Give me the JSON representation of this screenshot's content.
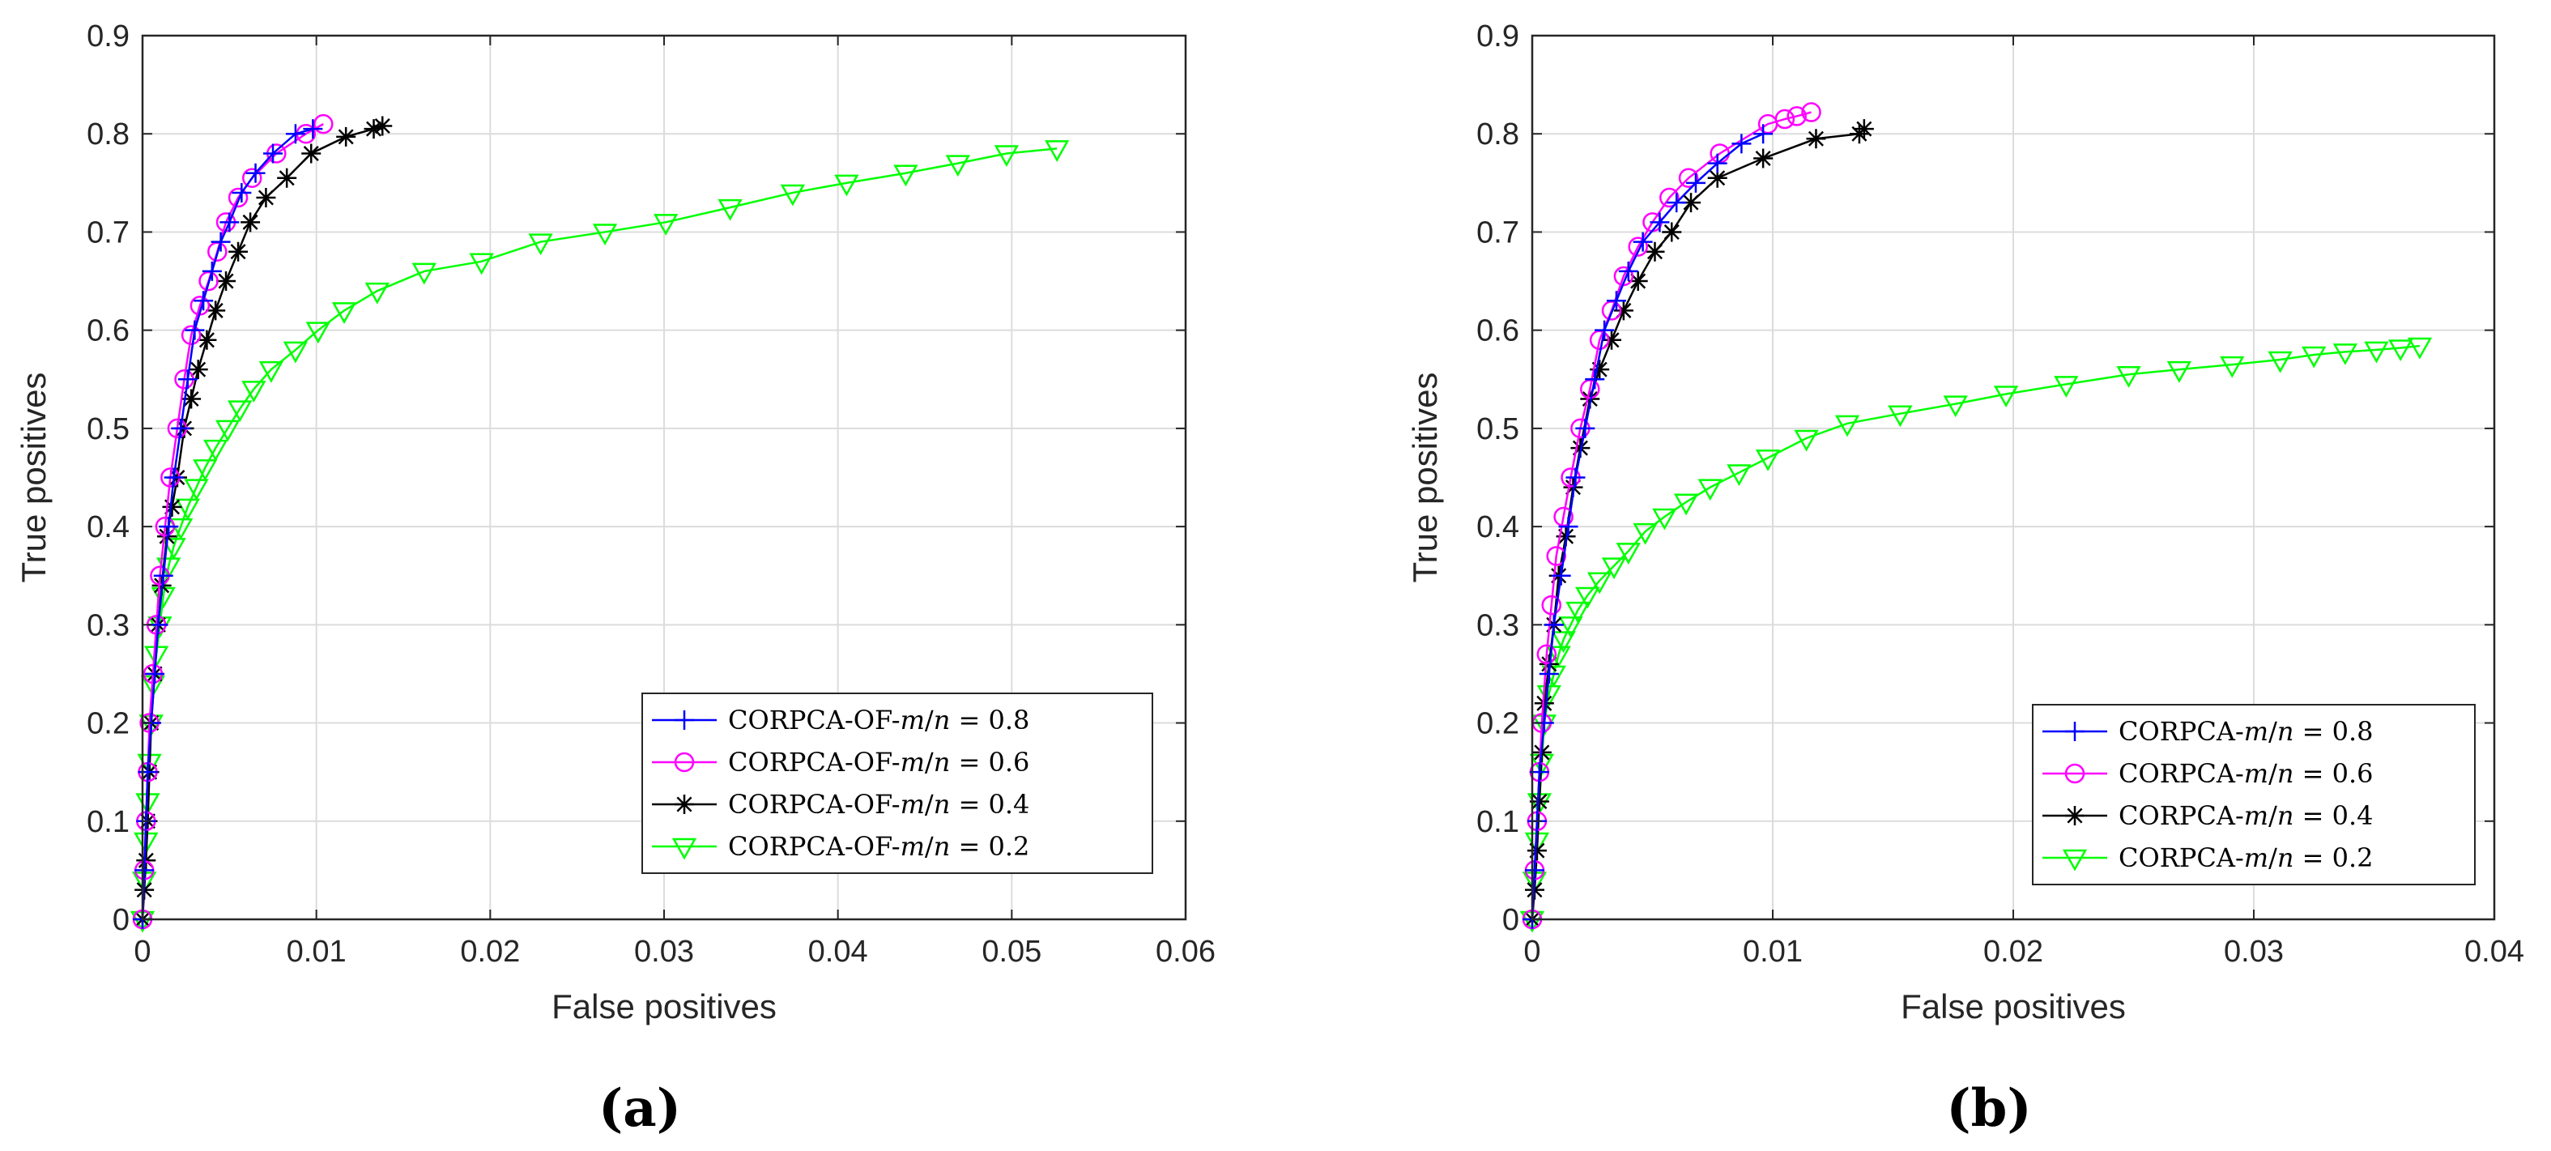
{
  "chart_data": [
    {
      "type": "line",
      "panel_label": "(a)",
      "xlabel": "False positives",
      "ylabel": "True positives",
      "xlim": [
        0,
        0.06
      ],
      "ylim": [
        0,
        0.9
      ],
      "xticks": [
        0,
        0.01,
        0.02,
        0.03,
        0.04,
        0.05,
        0.06
      ],
      "xtick_labels": [
        "0",
        "0.01",
        "0.02",
        "0.03",
        "0.04",
        "0.05",
        "0.06"
      ],
      "yticks": [
        0,
        0.1,
        0.2,
        0.3,
        0.4,
        0.5,
        0.6,
        0.7,
        0.8,
        0.9
      ],
      "ytick_labels": [
        "0",
        "0.1",
        "0.2",
        "0.3",
        "0.4",
        "0.5",
        "0.6",
        "0.7",
        "0.8",
        "0.9"
      ],
      "grid": true,
      "legend_position": "bottom-right",
      "series": [
        {
          "name": "CORPCA-OF-m/n = 0.8",
          "color": "#0000ff",
          "marker": "plus",
          "x": [
            0,
            0.0001,
            0.0002,
            0.0003,
            0.0005,
            0.0007,
            0.0009,
            0.0012,
            0.0015,
            0.0018,
            0.0022,
            0.0026,
            0.003,
            0.0035,
            0.004,
            0.0045,
            0.005,
            0.0057,
            0.0065,
            0.0075,
            0.0088,
            0.0098
          ],
          "y": [
            0,
            0.05,
            0.1,
            0.15,
            0.2,
            0.25,
            0.3,
            0.35,
            0.4,
            0.45,
            0.5,
            0.55,
            0.6,
            0.63,
            0.66,
            0.69,
            0.71,
            0.74,
            0.76,
            0.78,
            0.8,
            0.805
          ]
        },
        {
          "name": "CORPCA-OF-m/n = 0.6",
          "color": "#ff00ff",
          "marker": "circle",
          "x": [
            0,
            0.0001,
            0.0002,
            0.0003,
            0.0004,
            0.0006,
            0.0008,
            0.001,
            0.0013,
            0.0016,
            0.002,
            0.0024,
            0.0028,
            0.0033,
            0.0038,
            0.0043,
            0.0048,
            0.0055,
            0.0063,
            0.0077,
            0.0094,
            0.0104
          ],
          "y": [
            0,
            0.05,
            0.1,
            0.15,
            0.2,
            0.25,
            0.3,
            0.35,
            0.4,
            0.45,
            0.5,
            0.55,
            0.595,
            0.625,
            0.65,
            0.68,
            0.71,
            0.735,
            0.755,
            0.78,
            0.8,
            0.81
          ]
        },
        {
          "name": "CORPCA-OF-m/n = 0.4",
          "color": "#000000",
          "marker": "asterisk",
          "x": [
            0,
            0.0001,
            0.0002,
            0.0003,
            0.0004,
            0.0005,
            0.0007,
            0.0009,
            0.0011,
            0.0014,
            0.0017,
            0.002,
            0.0024,
            0.0028,
            0.0032,
            0.0037,
            0.0042,
            0.0048,
            0.0055,
            0.0062,
            0.0071,
            0.0083,
            0.0097,
            0.0117,
            0.0133,
            0.0138
          ],
          "y": [
            0,
            0.03,
            0.06,
            0.1,
            0.15,
            0.2,
            0.25,
            0.3,
            0.34,
            0.39,
            0.42,
            0.45,
            0.5,
            0.53,
            0.56,
            0.59,
            0.62,
            0.65,
            0.68,
            0.71,
            0.735,
            0.755,
            0.78,
            0.797,
            0.805,
            0.808
          ]
        },
        {
          "name": "CORPCA-OF-m/n = 0.2",
          "color": "#00ff00",
          "marker": "triangle-down",
          "x": [
            0,
            0.0001,
            0.0002,
            0.0003,
            0.0004,
            0.0005,
            0.0006,
            0.0008,
            0.001,
            0.0012,
            0.0015,
            0.0018,
            0.0022,
            0.0026,
            0.0031,
            0.0036,
            0.0042,
            0.0049,
            0.0056,
            0.0064,
            0.0074,
            0.0088,
            0.0101,
            0.0116,
            0.0135,
            0.0162,
            0.0195,
            0.0229,
            0.0266,
            0.0301,
            0.0338,
            0.0374,
            0.0405,
            0.0439,
            0.0469,
            0.0497,
            0.0526
          ],
          "y": [
            0,
            0.04,
            0.08,
            0.12,
            0.16,
            0.2,
            0.24,
            0.27,
            0.3,
            0.33,
            0.36,
            0.38,
            0.4,
            0.42,
            0.44,
            0.46,
            0.48,
            0.5,
            0.52,
            0.54,
            0.56,
            0.58,
            0.6,
            0.62,
            0.64,
            0.66,
            0.67,
            0.69,
            0.7,
            0.71,
            0.725,
            0.74,
            0.75,
            0.76,
            0.77,
            0.78,
            0.785
          ]
        }
      ]
    },
    {
      "type": "line",
      "panel_label": "(b)",
      "xlabel": "False positives",
      "ylabel": "True positives",
      "xlim": [
        0,
        0.04
      ],
      "ylim": [
        0,
        0.9
      ],
      "xticks": [
        0,
        0.01,
        0.02,
        0.03,
        0.04
      ],
      "xtick_labels": [
        "0",
        "0.01",
        "0.02",
        "0.03",
        "0.04"
      ],
      "yticks": [
        0,
        0.1,
        0.2,
        0.3,
        0.4,
        0.5,
        0.6,
        0.7,
        0.8,
        0.9
      ],
      "ytick_labels": [
        "0",
        "0.1",
        "0.2",
        "0.3",
        "0.4",
        "0.5",
        "0.6",
        "0.7",
        "0.8",
        "0.9"
      ],
      "grid": true,
      "legend_position": "bottom-right",
      "series": [
        {
          "name": "CORPCA-m/n = 0.8",
          "color": "#0000ff",
          "marker": "plus",
          "x": [
            0,
            0.0001,
            0.0002,
            0.0003,
            0.0005,
            0.0007,
            0.0009,
            0.0012,
            0.0015,
            0.0018,
            0.0022,
            0.0026,
            0.003,
            0.0035,
            0.004,
            0.0046,
            0.0053,
            0.006,
            0.0068,
            0.0077,
            0.0087,
            0.0096
          ],
          "y": [
            0,
            0.05,
            0.1,
            0.15,
            0.2,
            0.25,
            0.3,
            0.35,
            0.4,
            0.45,
            0.5,
            0.55,
            0.6,
            0.63,
            0.66,
            0.69,
            0.71,
            0.73,
            0.75,
            0.77,
            0.79,
            0.8
          ]
        },
        {
          "name": "CORPCA-m/n = 0.6",
          "color": "#ff00ff",
          "marker": "circle",
          "x": [
            0,
            0.0001,
            0.0002,
            0.0003,
            0.0004,
            0.0006,
            0.0008,
            0.001,
            0.0013,
            0.0016,
            0.002,
            0.0024,
            0.0028,
            0.0033,
            0.0038,
            0.0044,
            0.005,
            0.0057,
            0.0065,
            0.0078,
            0.0098,
            0.0105,
            0.011,
            0.0116
          ],
          "y": [
            0,
            0.05,
            0.1,
            0.15,
            0.2,
            0.27,
            0.32,
            0.37,
            0.41,
            0.45,
            0.5,
            0.54,
            0.59,
            0.62,
            0.655,
            0.685,
            0.71,
            0.735,
            0.755,
            0.78,
            0.81,
            0.815,
            0.818,
            0.822
          ]
        },
        {
          "name": "CORPCA-m/n = 0.4",
          "color": "#000000",
          "marker": "asterisk",
          "x": [
            0,
            0.0001,
            0.0002,
            0.0003,
            0.0004,
            0.0005,
            0.0007,
            0.0009,
            0.0011,
            0.0014,
            0.0017,
            0.002,
            0.0024,
            0.0028,
            0.0033,
            0.0038,
            0.0044,
            0.0051,
            0.0058,
            0.0066,
            0.0077,
            0.0096,
            0.0118,
            0.0136,
            0.0138
          ],
          "y": [
            0,
            0.03,
            0.07,
            0.12,
            0.17,
            0.22,
            0.26,
            0.3,
            0.35,
            0.39,
            0.44,
            0.48,
            0.53,
            0.56,
            0.59,
            0.62,
            0.65,
            0.68,
            0.7,
            0.73,
            0.755,
            0.775,
            0.795,
            0.8,
            0.805
          ]
        },
        {
          "name": "CORPCA-m/n = 0.2",
          "color": "#00ff00",
          "marker": "triangle-down",
          "x": [
            0,
            0.0001,
            0.0002,
            0.0003,
            0.0004,
            0.0005,
            0.0007,
            0.0009,
            0.0011,
            0.0013,
            0.0016,
            0.0019,
            0.0023,
            0.0028,
            0.0034,
            0.004,
            0.0047,
            0.0055,
            0.0064,
            0.0074,
            0.0086,
            0.0098,
            0.0114,
            0.0131,
            0.0153,
            0.0176,
            0.0197,
            0.0222,
            0.0248,
            0.0269,
            0.0291,
            0.0311,
            0.0325,
            0.0338,
            0.0351,
            0.0361,
            0.0369
          ],
          "y": [
            0,
            0.04,
            0.08,
            0.12,
            0.16,
            0.2,
            0.23,
            0.25,
            0.27,
            0.285,
            0.3,
            0.315,
            0.33,
            0.345,
            0.36,
            0.375,
            0.395,
            0.41,
            0.425,
            0.44,
            0.455,
            0.47,
            0.49,
            0.505,
            0.515,
            0.525,
            0.535,
            0.545,
            0.555,
            0.56,
            0.565,
            0.57,
            0.575,
            0.578,
            0.58,
            0.582,
            0.584
          ]
        }
      ]
    }
  ]
}
